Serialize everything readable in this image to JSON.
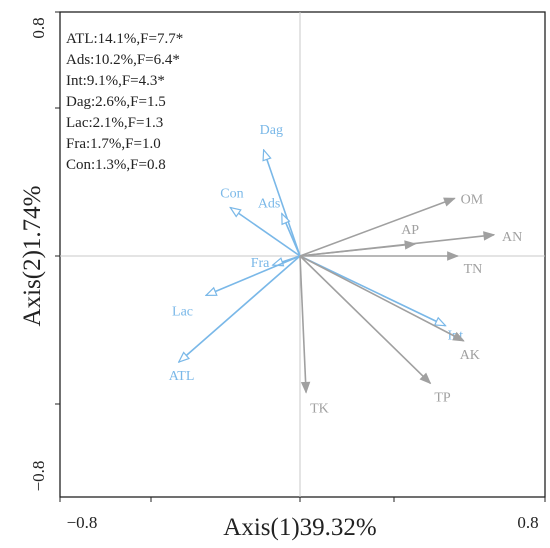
{
  "chart_data": {
    "type": "scatter",
    "subtype": "biplot",
    "xlabel": "Axis(1)39.32%",
    "ylabel": "Axis(2)1.74%",
    "xlim": [
      -0.8,
      0.8
    ],
    "ylim": [
      -0.8,
      0.8
    ],
    "x_tick_labels": [
      "−0.8",
      "0.8"
    ],
    "y_tick_labels": [
      "0.8",
      "−0.8"
    ],
    "grid": false,
    "stats_text": [
      "ATL:14.1%,F=7.7*",
      "Ads:10.2%,F=6.4*",
      "Int:9.1%,F=4.3*",
      "Dag:2.6%,F=1.5",
      "Lac:2.1%,F=1.3",
      "Fra:1.7%,F=1.0",
      "Con:1.3%,F=0.8"
    ],
    "series": [
      {
        "color": "#7ab8e8",
        "arrowhead": "open",
        "vectors": [
          {
            "label": "Dag",
            "x": -0.12,
            "y": 0.35
          },
          {
            "label": "Con",
            "x": -0.23,
            "y": 0.16
          },
          {
            "label": "Ads",
            "x": -0.06,
            "y": 0.14
          },
          {
            "label": "Fra",
            "x": -0.09,
            "y": -0.03
          },
          {
            "label": "Lac",
            "x": -0.31,
            "y": -0.13
          },
          {
            "label": "ATL",
            "x": -0.4,
            "y": -0.35
          },
          {
            "label": "Int",
            "x": 0.48,
            "y": -0.23
          }
        ]
      },
      {
        "color": "#a0a0a0",
        "arrowhead": "filled",
        "vectors": [
          {
            "label": "OM",
            "x": 0.51,
            "y": 0.19
          },
          {
            "label": "AP",
            "x": 0.38,
            "y": 0.04
          },
          {
            "label": "AN",
            "x": 0.64,
            "y": 0.07
          },
          {
            "label": "TN",
            "x": 0.52,
            "y": 0.0
          },
          {
            "label": "AK",
            "x": 0.54,
            "y": -0.28
          },
          {
            "label": "TP",
            "x": 0.43,
            "y": -0.42
          },
          {
            "label": "TK",
            "x": 0.02,
            "y": -0.45
          }
        ]
      }
    ]
  }
}
